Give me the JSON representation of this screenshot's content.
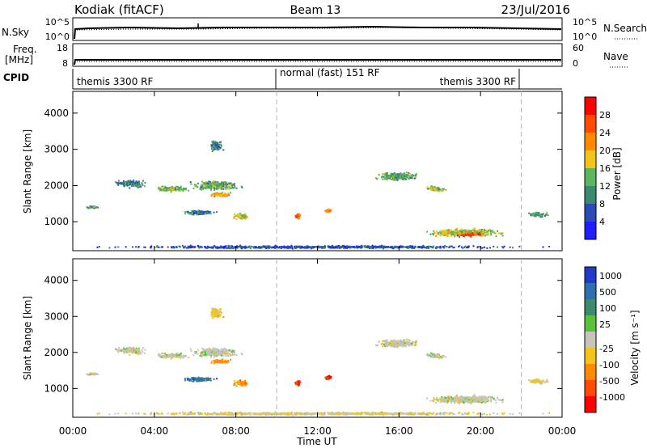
{
  "header": {
    "station": "Kodiak (fitACF)",
    "beam": "Beam 13",
    "date": "23/Jul/2016"
  },
  "top_panels": {
    "nsky_label": "N.Sky",
    "nsearch_label": "N.Search",
    "freq_label_1": "Freq.",
    "freq_label_2": "[MHz]",
    "nave_label": "Nave",
    "cpid_label": "CPID",
    "nsky_ticks": [
      "10^5",
      "10^0"
    ],
    "nsearch_ticks": [
      "10^5",
      "10^0"
    ],
    "freq_ticks": [
      "18",
      "8"
    ],
    "nave_ticks": [
      "60",
      "0"
    ],
    "cpid_segments": [
      {
        "label": "themis 3300 RF",
        "start": 0.0,
        "end": 10.0
      },
      {
        "label": "normal (fast) 151 RF",
        "start": 10.0,
        "end": 22.0
      },
      {
        "label": "themis 3300 RF",
        "start": 22.0,
        "end": 24.0
      }
    ]
  },
  "x_axis": {
    "title": "Time UT",
    "ticks": [
      "00:00",
      "04:00",
      "08:00",
      "12:00",
      "16:00",
      "20:00",
      "00:00"
    ],
    "range_hours": [
      0,
      24
    ]
  },
  "y_axis": {
    "title": "Slant Range [km]",
    "ticks": [
      "1000",
      "2000",
      "3000",
      "4000"
    ],
    "range_km": [
      200,
      4600
    ]
  },
  "power_scale": {
    "title": "Power [dB]",
    "labels": [
      "4",
      "8",
      "12",
      "16",
      "20",
      "24",
      "28"
    ],
    "colors": [
      "#1e1eff",
      "#2c4bb4",
      "#3b8a6e",
      "#5db55d",
      "#f2c41a",
      "#ff8a00",
      "#ff4a00",
      "#ff0000"
    ]
  },
  "velocity_scale": {
    "title": "Velocity [m s⁻¹]",
    "labels": [
      "1000",
      "500",
      "100",
      "25",
      "-25",
      "-100",
      "-500",
      "-1000"
    ],
    "colors": [
      "#1e3cc8",
      "#2f6fb0",
      "#3c8a70",
      "#58c238",
      "#c4c4bc",
      "#f2c41a",
      "#ff8a00",
      "#ff4a00",
      "#ff0000"
    ]
  },
  "chart_data": {
    "type": "heatmap",
    "x_unit": "hours UT",
    "y_unit": "km",
    "blobs": [
      {
        "x": 0.9,
        "y": 1400,
        "w": 1.0,
        "h": 80,
        "p": 0.35,
        "v": 0.5
      },
      {
        "x": 2.8,
        "y": 2050,
        "w": 1.8,
        "h": 250,
        "p": 0.3,
        "v": 0.5
      },
      {
        "x": 4.8,
        "y": 1900,
        "w": 2.0,
        "h": 200,
        "p": 0.45,
        "v": 0.5
      },
      {
        "x": 7.0,
        "y": 2000,
        "w": 3.0,
        "h": 300,
        "p": 0.4,
        "v": 0.5
      },
      {
        "x": 7.2,
        "y": 1750,
        "w": 1.2,
        "h": 150,
        "p": 0.6,
        "v": 0.7
      },
      {
        "x": 6.2,
        "y": 1250,
        "w": 2.0,
        "h": 150,
        "p": 0.3,
        "v": 0.2
      },
      {
        "x": 8.2,
        "y": 1150,
        "w": 1.0,
        "h": 250,
        "p": 0.55,
        "v": 0.7
      },
      {
        "x": 7.0,
        "y": 3100,
        "w": 0.8,
        "h": 400,
        "p": 0.3,
        "v": 0.6
      },
      {
        "x": 11.0,
        "y": 1150,
        "w": 0.35,
        "h": 180,
        "p": 0.75,
        "v": 0.9
      },
      {
        "x": 12.5,
        "y": 1300,
        "w": 0.35,
        "h": 120,
        "p": 0.65,
        "v": 0.92
      },
      {
        "x": 15.9,
        "y": 2250,
        "w": 2.5,
        "h": 300,
        "p": 0.4,
        "v": 0.5
      },
      {
        "x": 17.8,
        "y": 1900,
        "w": 1.2,
        "h": 200,
        "p": 0.5,
        "v": 0.5
      },
      {
        "x": 19.2,
        "y": 700,
        "w": 4.5,
        "h": 280,
        "p": 0.5,
        "v": 0.5
      },
      {
        "x": 19.5,
        "y": 650,
        "w": 1.8,
        "h": 120,
        "p": 0.8,
        "v": 0.5
      },
      {
        "x": 22.8,
        "y": 1200,
        "w": 1.2,
        "h": 150,
        "p": 0.35,
        "v": 0.55
      },
      {
        "x": 12.0,
        "y": 300,
        "w": 24.0,
        "h": 100,
        "p": 0.2,
        "v": 0.55
      }
    ],
    "dashed_time_markers_hours": [
      10.0,
      22.0
    ]
  },
  "colors": {
    "axis": "#000000",
    "grid_marker": "#b4b4b4"
  }
}
